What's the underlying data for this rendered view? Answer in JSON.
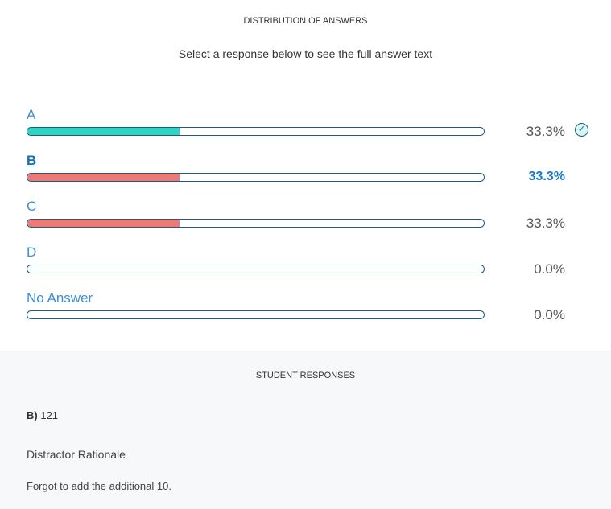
{
  "header": {
    "title": "DISTRIBUTION OF ANSWERS",
    "subtitle": "Select a response below to see the full answer text"
  },
  "colors": {
    "correct": "#2dd4c2",
    "incorrect": "#ef7a75",
    "outline": "#1f5a86",
    "label": "#3a8fd6"
  },
  "answers": [
    {
      "label": "A",
      "percent": "33.3%",
      "value": 33.3,
      "correct": true,
      "selected": false
    },
    {
      "label": "B",
      "percent": "33.3%",
      "value": 33.3,
      "correct": false,
      "selected": true
    },
    {
      "label": "C",
      "percent": "33.3%",
      "value": 33.3,
      "correct": false,
      "selected": false
    },
    {
      "label": "D",
      "percent": "0.0%",
      "value": 0,
      "correct": false,
      "selected": false
    },
    {
      "label": "No Answer",
      "percent": "0.0%",
      "value": 0,
      "correct": false,
      "selected": false
    }
  ],
  "correct_icon": "check-circle-icon",
  "student_responses": {
    "title": "STUDENT RESPONSES",
    "choice": "B)",
    "answer": "121",
    "rationale_title": "Distractor Rationale",
    "rationale": "Forgot to add the additional 10."
  }
}
